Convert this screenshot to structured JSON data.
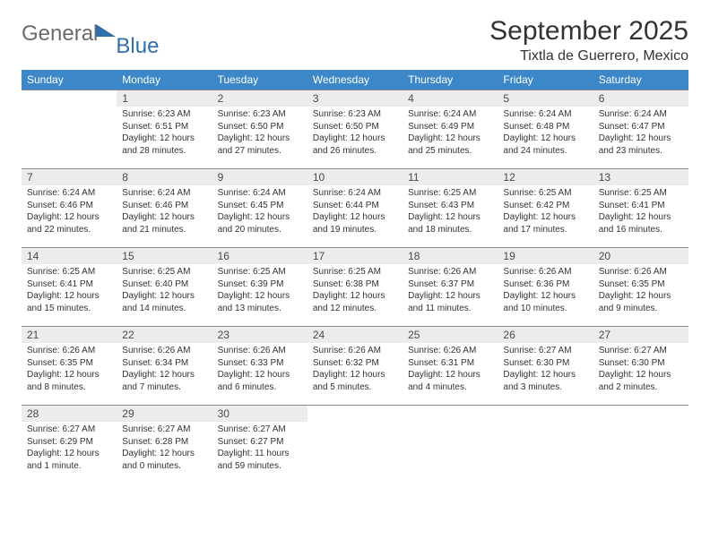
{
  "brand": {
    "part1": "General",
    "part2": "Blue"
  },
  "title": "September 2025",
  "location": "Tixtla de Guerrero, Mexico",
  "column_headers": [
    "Sunday",
    "Monday",
    "Tuesday",
    "Wednesday",
    "Thursday",
    "Friday",
    "Saturday"
  ],
  "colors": {
    "header_bg": "#3b87c8",
    "header_fg": "#ffffff",
    "daynum_bg": "#ececec",
    "grid_line": "#888888",
    "brand_gray": "#6a6a6a",
    "brand_blue": "#2f6fab"
  },
  "weeks": [
    [
      {
        "n": "",
        "sr": "",
        "ss": "",
        "dl": "",
        "empty": true
      },
      {
        "n": "1",
        "sr": "Sunrise: 6:23 AM",
        "ss": "Sunset: 6:51 PM",
        "dl": "Daylight: 12 hours and 28 minutes."
      },
      {
        "n": "2",
        "sr": "Sunrise: 6:23 AM",
        "ss": "Sunset: 6:50 PM",
        "dl": "Daylight: 12 hours and 27 minutes."
      },
      {
        "n": "3",
        "sr": "Sunrise: 6:23 AM",
        "ss": "Sunset: 6:50 PM",
        "dl": "Daylight: 12 hours and 26 minutes."
      },
      {
        "n": "4",
        "sr": "Sunrise: 6:24 AM",
        "ss": "Sunset: 6:49 PM",
        "dl": "Daylight: 12 hours and 25 minutes."
      },
      {
        "n": "5",
        "sr": "Sunrise: 6:24 AM",
        "ss": "Sunset: 6:48 PM",
        "dl": "Daylight: 12 hours and 24 minutes."
      },
      {
        "n": "6",
        "sr": "Sunrise: 6:24 AM",
        "ss": "Sunset: 6:47 PM",
        "dl": "Daylight: 12 hours and 23 minutes."
      }
    ],
    [
      {
        "n": "7",
        "sr": "Sunrise: 6:24 AM",
        "ss": "Sunset: 6:46 PM",
        "dl": "Daylight: 12 hours and 22 minutes."
      },
      {
        "n": "8",
        "sr": "Sunrise: 6:24 AM",
        "ss": "Sunset: 6:46 PM",
        "dl": "Daylight: 12 hours and 21 minutes."
      },
      {
        "n": "9",
        "sr": "Sunrise: 6:24 AM",
        "ss": "Sunset: 6:45 PM",
        "dl": "Daylight: 12 hours and 20 minutes."
      },
      {
        "n": "10",
        "sr": "Sunrise: 6:24 AM",
        "ss": "Sunset: 6:44 PM",
        "dl": "Daylight: 12 hours and 19 minutes."
      },
      {
        "n": "11",
        "sr": "Sunrise: 6:25 AM",
        "ss": "Sunset: 6:43 PM",
        "dl": "Daylight: 12 hours and 18 minutes."
      },
      {
        "n": "12",
        "sr": "Sunrise: 6:25 AM",
        "ss": "Sunset: 6:42 PM",
        "dl": "Daylight: 12 hours and 17 minutes."
      },
      {
        "n": "13",
        "sr": "Sunrise: 6:25 AM",
        "ss": "Sunset: 6:41 PM",
        "dl": "Daylight: 12 hours and 16 minutes."
      }
    ],
    [
      {
        "n": "14",
        "sr": "Sunrise: 6:25 AM",
        "ss": "Sunset: 6:41 PM",
        "dl": "Daylight: 12 hours and 15 minutes."
      },
      {
        "n": "15",
        "sr": "Sunrise: 6:25 AM",
        "ss": "Sunset: 6:40 PM",
        "dl": "Daylight: 12 hours and 14 minutes."
      },
      {
        "n": "16",
        "sr": "Sunrise: 6:25 AM",
        "ss": "Sunset: 6:39 PM",
        "dl": "Daylight: 12 hours and 13 minutes."
      },
      {
        "n": "17",
        "sr": "Sunrise: 6:25 AM",
        "ss": "Sunset: 6:38 PM",
        "dl": "Daylight: 12 hours and 12 minutes."
      },
      {
        "n": "18",
        "sr": "Sunrise: 6:26 AM",
        "ss": "Sunset: 6:37 PM",
        "dl": "Daylight: 12 hours and 11 minutes."
      },
      {
        "n": "19",
        "sr": "Sunrise: 6:26 AM",
        "ss": "Sunset: 6:36 PM",
        "dl": "Daylight: 12 hours and 10 minutes."
      },
      {
        "n": "20",
        "sr": "Sunrise: 6:26 AM",
        "ss": "Sunset: 6:35 PM",
        "dl": "Daylight: 12 hours and 9 minutes."
      }
    ],
    [
      {
        "n": "21",
        "sr": "Sunrise: 6:26 AM",
        "ss": "Sunset: 6:35 PM",
        "dl": "Daylight: 12 hours and 8 minutes."
      },
      {
        "n": "22",
        "sr": "Sunrise: 6:26 AM",
        "ss": "Sunset: 6:34 PM",
        "dl": "Daylight: 12 hours and 7 minutes."
      },
      {
        "n": "23",
        "sr": "Sunrise: 6:26 AM",
        "ss": "Sunset: 6:33 PM",
        "dl": "Daylight: 12 hours and 6 minutes."
      },
      {
        "n": "24",
        "sr": "Sunrise: 6:26 AM",
        "ss": "Sunset: 6:32 PM",
        "dl": "Daylight: 12 hours and 5 minutes."
      },
      {
        "n": "25",
        "sr": "Sunrise: 6:26 AM",
        "ss": "Sunset: 6:31 PM",
        "dl": "Daylight: 12 hours and 4 minutes."
      },
      {
        "n": "26",
        "sr": "Sunrise: 6:27 AM",
        "ss": "Sunset: 6:30 PM",
        "dl": "Daylight: 12 hours and 3 minutes."
      },
      {
        "n": "27",
        "sr": "Sunrise: 6:27 AM",
        "ss": "Sunset: 6:30 PM",
        "dl": "Daylight: 12 hours and 2 minutes."
      }
    ],
    [
      {
        "n": "28",
        "sr": "Sunrise: 6:27 AM",
        "ss": "Sunset: 6:29 PM",
        "dl": "Daylight: 12 hours and 1 minute."
      },
      {
        "n": "29",
        "sr": "Sunrise: 6:27 AM",
        "ss": "Sunset: 6:28 PM",
        "dl": "Daylight: 12 hours and 0 minutes."
      },
      {
        "n": "30",
        "sr": "Sunrise: 6:27 AM",
        "ss": "Sunset: 6:27 PM",
        "dl": "Daylight: 11 hours and 59 minutes."
      },
      {
        "n": "",
        "sr": "",
        "ss": "",
        "dl": "",
        "empty": true
      },
      {
        "n": "",
        "sr": "",
        "ss": "",
        "dl": "",
        "empty": true
      },
      {
        "n": "",
        "sr": "",
        "ss": "",
        "dl": "",
        "empty": true
      },
      {
        "n": "",
        "sr": "",
        "ss": "",
        "dl": "",
        "empty": true
      }
    ]
  ]
}
